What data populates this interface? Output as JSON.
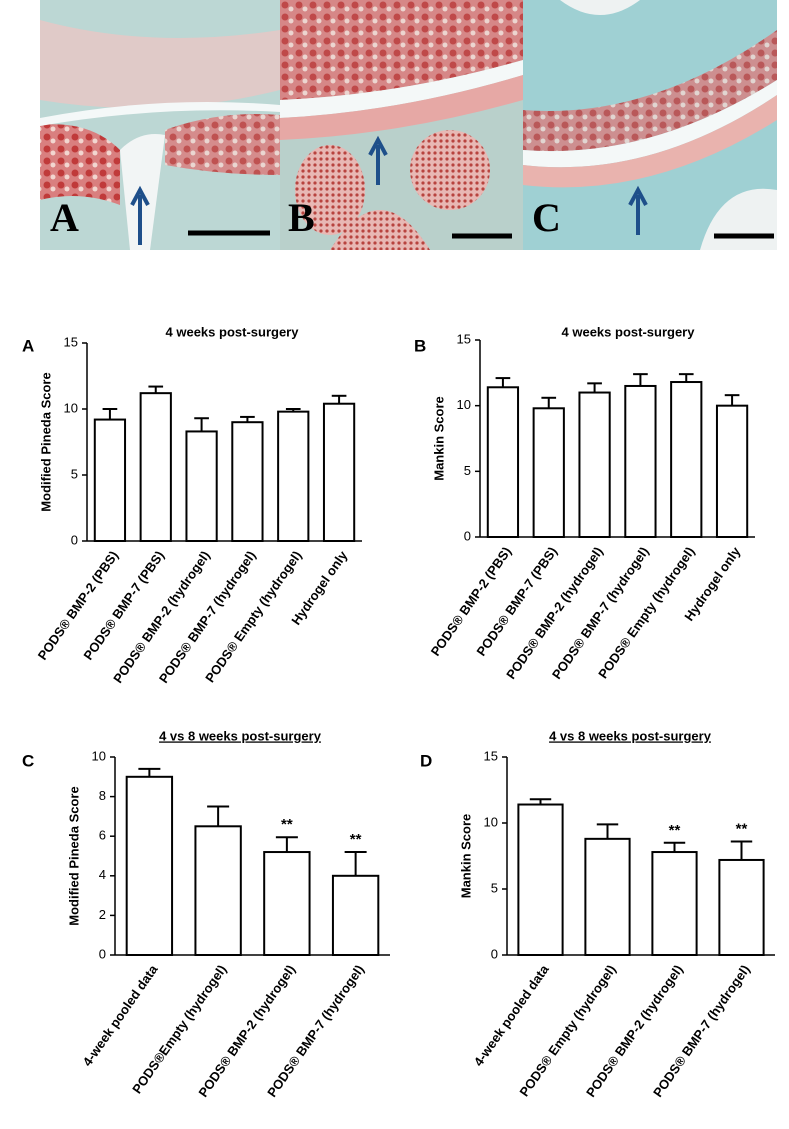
{
  "image_panels": [
    {
      "label": "A"
    },
    {
      "label": "B"
    },
    {
      "label": "C"
    }
  ],
  "chart_data": [
    {
      "type": "bar",
      "panel_label": "A",
      "title": "4 weeks post-surgery",
      "title_underline": false,
      "y_label": "Modified Pineda Score",
      "categories": [
        "PODS® BMP-2 (PBS)",
        "PODS® BMP-7 (PBS)",
        "PODS® BMP-2 (hydrogel)",
        "PODS® BMP-7 (hydrogel)",
        "PODS® Empty (hydrogel)",
        "Hydrogel only"
      ],
      "values": [
        9.2,
        11.2,
        8.3,
        9.0,
        9.8,
        10.4
      ],
      "errors": [
        0.8,
        0.5,
        1.0,
        0.4,
        0.2,
        0.6
      ],
      "ylim": [
        0,
        15
      ],
      "yticks": [
        0,
        5,
        10,
        15
      ],
      "color": "#ffffff"
    },
    {
      "type": "bar",
      "panel_label": "B",
      "title": "4 weeks post-surgery",
      "title_underline": false,
      "y_label": "Mankin Score",
      "categories": [
        "PODS® BMP-2 (PBS)",
        "PODS® BMP-7 (PBS)",
        "PODS® BMP-2 (hydrogel)",
        "PODS® BMP-7 (hydrogel)",
        "PODS® Empty (hydrogel)",
        "Hydrogel only"
      ],
      "values": [
        11.4,
        9.8,
        11.0,
        11.5,
        11.8,
        10.0
      ],
      "errors": [
        0.7,
        0.8,
        0.7,
        0.9,
        0.6,
        0.8
      ],
      "ylim": [
        0,
        15
      ],
      "yticks": [
        0,
        5,
        10,
        15
      ],
      "color": "#ffffff"
    },
    {
      "type": "bar",
      "panel_label": "C",
      "title": "4 vs 8 weeks post-surgery",
      "title_underline": true,
      "y_label": "Modified Pineda Score",
      "categories": [
        "4-week pooled data",
        "PODS®Empty (hydrogel)",
        "PODS® BMP-2 (hydrogel)",
        "PODS® BMP-7 (hydrogel)"
      ],
      "values": [
        9.0,
        6.5,
        5.2,
        4.0
      ],
      "errors": [
        0.4,
        1.0,
        0.75,
        1.2
      ],
      "significance": [
        null,
        null,
        "**",
        "**"
      ],
      "ylim": [
        0,
        10
      ],
      "yticks": [
        0,
        2,
        4,
        6,
        8,
        10
      ],
      "color": "#ffffff"
    },
    {
      "type": "bar",
      "panel_label": "D",
      "title": "4 vs 8 weeks post-surgery",
      "title_underline": true,
      "y_label": "Mankin Score",
      "categories": [
        "4-week pooled data",
        "PODS® Empty (hydrogel)",
        "PODS® BMP-2 (hydrogel)",
        "PODS® BMP-7 (hydrogel)"
      ],
      "values": [
        11.4,
        8.8,
        7.8,
        7.2
      ],
      "errors": [
        0.4,
        1.1,
        0.7,
        1.4
      ],
      "significance": [
        null,
        null,
        "**",
        "**"
      ],
      "ylim": [
        0,
        15
      ],
      "yticks": [
        0,
        5,
        10,
        15
      ],
      "color": "#ffffff"
    }
  ]
}
